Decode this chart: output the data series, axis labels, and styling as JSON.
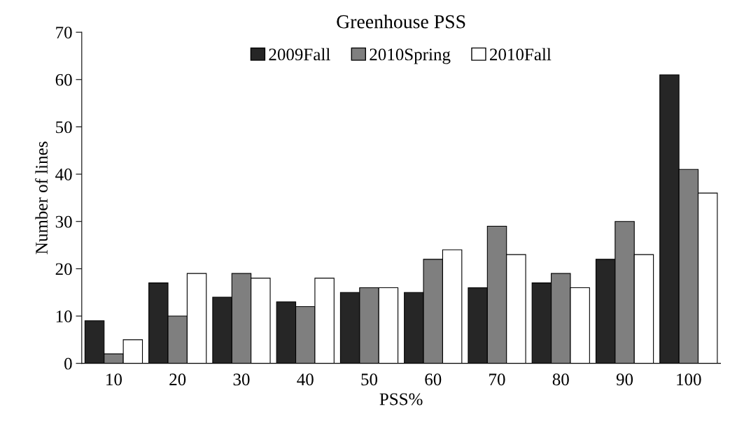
{
  "chart_data": {
    "type": "bar",
    "title": "Greenhouse PSS",
    "xlabel": "PSS%",
    "ylabel": "Number of lines",
    "categories": [
      "10",
      "20",
      "30",
      "40",
      "50",
      "60",
      "70",
      "80",
      "90",
      "100"
    ],
    "series": [
      {
        "name": "2009Fall",
        "color": "#262626",
        "values": [
          9,
          17,
          14,
          13,
          15,
          15,
          16,
          17,
          22,
          61
        ]
      },
      {
        "name": "2010Spring",
        "color": "#7f7f7f",
        "values": [
          2,
          10,
          19,
          12,
          16,
          22,
          29,
          19,
          30,
          41
        ]
      },
      {
        "name": "2010Fall",
        "color": "#ffffff",
        "values": [
          5,
          19,
          18,
          18,
          16,
          24,
          23,
          16,
          23,
          36
        ]
      }
    ],
    "ylim": [
      0,
      70
    ],
    "yticks": [
      0,
      10,
      20,
      30,
      40,
      50,
      60,
      70
    ],
    "grid": false,
    "legend": "top"
  }
}
